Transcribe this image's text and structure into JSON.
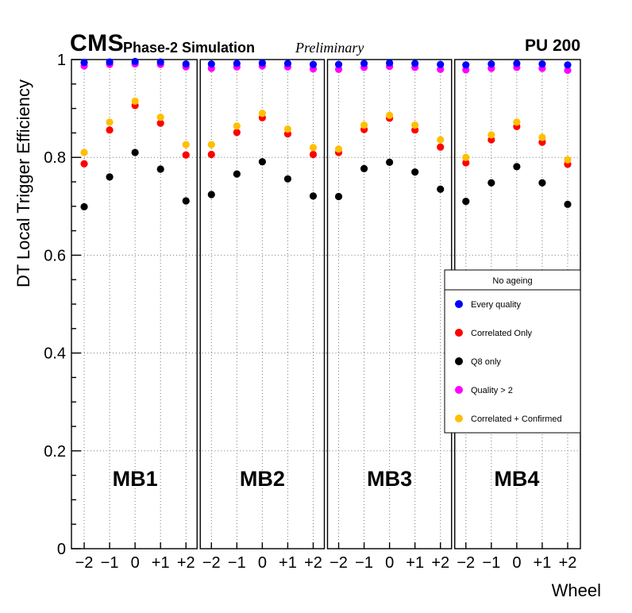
{
  "header": {
    "experiment": "CMS",
    "simulation_label": "Phase-2 Simulation",
    "preliminary_label": "Preliminary",
    "pileup_label": "PU 200"
  },
  "axes": {
    "y_title": "DT Local Trigger Efficiency",
    "x_title": "Wheel"
  },
  "legend": {
    "title": "No ageing",
    "entries": [
      {
        "label": "Every quality",
        "color": "#0000ff",
        "marker": "circle-icon"
      },
      {
        "label": "Correlated Only",
        "color": "#ff0000",
        "marker": "circle-icon"
      },
      {
        "label": "Q8 only",
        "color": "#000000",
        "marker": "circle-icon"
      },
      {
        "label": "Quality > 2",
        "color": "#ff00ff",
        "marker": "circle-icon"
      },
      {
        "label": "Correlated + Confirmed",
        "color": "#ffbf00",
        "marker": "circle-icon"
      }
    ]
  },
  "chart_data": {
    "type": "scatter",
    "xlabel": "Wheel",
    "ylabel": "DT Local Trigger Efficiency",
    "ylim": [
      0,
      1
    ],
    "grid": true,
    "legend_position": "middle-right",
    "y_ticks": [
      0,
      0.2,
      0.4,
      0.6,
      0.8,
      1
    ],
    "y_tick_labels": [
      "0",
      "0.2",
      "0.4",
      "0.6",
      "0.8",
      "1"
    ],
    "x_categories": [
      "−2",
      "−1",
      "0",
      "+1",
      "+2"
    ],
    "panels": [
      "MB1",
      "MB2",
      "MB3",
      "MB4"
    ],
    "series": [
      {
        "name": "Every quality",
        "color": "#0000ff",
        "values": {
          "MB1": [
            0.994,
            0.995,
            0.996,
            0.995,
            0.991
          ],
          "MB2": [
            0.991,
            0.992,
            0.993,
            0.992,
            0.99
          ],
          "MB3": [
            0.99,
            0.992,
            0.993,
            0.992,
            0.99
          ],
          "MB4": [
            0.989,
            0.991,
            0.992,
            0.991,
            0.989
          ]
        }
      },
      {
        "name": "Correlated Only",
        "color": "#ff0000",
        "values": {
          "MB1": [
            0.787,
            0.856,
            0.906,
            0.87,
            0.805
          ],
          "MB2": [
            0.806,
            0.851,
            0.881,
            0.848,
            0.806
          ],
          "MB3": [
            0.81,
            0.857,
            0.88,
            0.856,
            0.821
          ],
          "MB4": [
            0.789,
            0.836,
            0.863,
            0.831,
            0.786
          ]
        }
      },
      {
        "name": "Q8 only",
        "color": "#000000",
        "values": {
          "MB1": [
            0.699,
            0.76,
            0.81,
            0.776,
            0.711
          ],
          "MB2": [
            0.724,
            0.766,
            0.791,
            0.756,
            0.721
          ],
          "MB3": [
            0.72,
            0.777,
            0.79,
            0.77,
            0.735
          ],
          "MB4": [
            0.71,
            0.748,
            0.781,
            0.748,
            0.704
          ]
        }
      },
      {
        "name": "Quality > 2",
        "color": "#ff00ff",
        "values": {
          "MB1": [
            0.987,
            0.99,
            0.991,
            0.99,
            0.985
          ],
          "MB2": [
            0.982,
            0.985,
            0.987,
            0.985,
            0.981
          ],
          "MB3": [
            0.98,
            0.984,
            0.986,
            0.984,
            0.98
          ],
          "MB4": [
            0.979,
            0.982,
            0.984,
            0.982,
            0.978
          ]
        }
      },
      {
        "name": "Correlated + Confirmed",
        "color": "#ffbf00",
        "values": {
          "MB1": [
            0.81,
            0.872,
            0.915,
            0.882,
            0.826
          ],
          "MB2": [
            0.826,
            0.864,
            0.89,
            0.858,
            0.82
          ],
          "MB3": [
            0.817,
            0.866,
            0.886,
            0.866,
            0.836
          ],
          "MB4": [
            0.8,
            0.846,
            0.872,
            0.841,
            0.795
          ]
        }
      }
    ]
  }
}
